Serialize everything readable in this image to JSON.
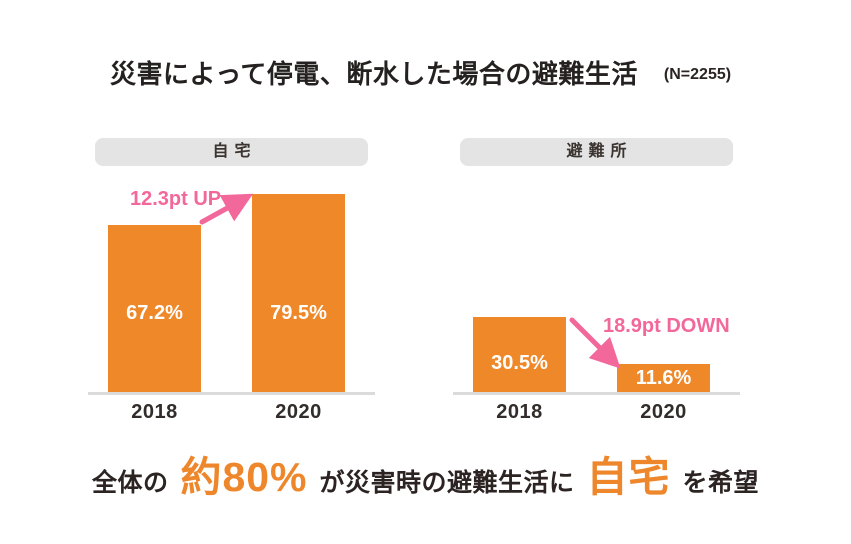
{
  "title": {
    "text": "災害によって停電、断水した場合の避難生活",
    "sample": "(N=2255)"
  },
  "colors": {
    "bar_orange": "#EF8829",
    "accent_orange": "#EE872B",
    "annotation_pink": "#F2689B",
    "dark_text": "#2B2422",
    "pill_background": "#E4E4E4",
    "axis_gray": "#DBDBDB"
  },
  "chart_data": [
    {
      "type": "bar",
      "title": "自宅",
      "categories": [
        "2018",
        "2020"
      ],
      "values": [
        67.2,
        79.5
      ],
      "value_labels": [
        "67.2%",
        "79.5%"
      ],
      "annotation": "12.3pt UP",
      "annotation_direction": "up",
      "bar_color": "#EF8829",
      "ylim": [
        0,
        100
      ],
      "grid": false,
      "legend_position": "none"
    },
    {
      "type": "bar",
      "title": "避難所",
      "categories": [
        "2018",
        "2020"
      ],
      "values": [
        30.5,
        11.6
      ],
      "value_labels": [
        "30.5%",
        "11.6%"
      ],
      "annotation": "18.9pt DOWN",
      "annotation_direction": "down",
      "bar_color": "#EF8829",
      "ylim": [
        0,
        100
      ],
      "grid": false,
      "legend_position": "none"
    }
  ],
  "footer": {
    "segments": [
      {
        "text": "全体の",
        "style": "dark"
      },
      {
        "text": "約80%",
        "style": "orange"
      },
      {
        "text": "が災害時の避難生活に",
        "style": "dark"
      },
      {
        "text": "自宅",
        "style": "orange"
      },
      {
        "text": "を希望",
        "style": "dark"
      }
    ]
  }
}
